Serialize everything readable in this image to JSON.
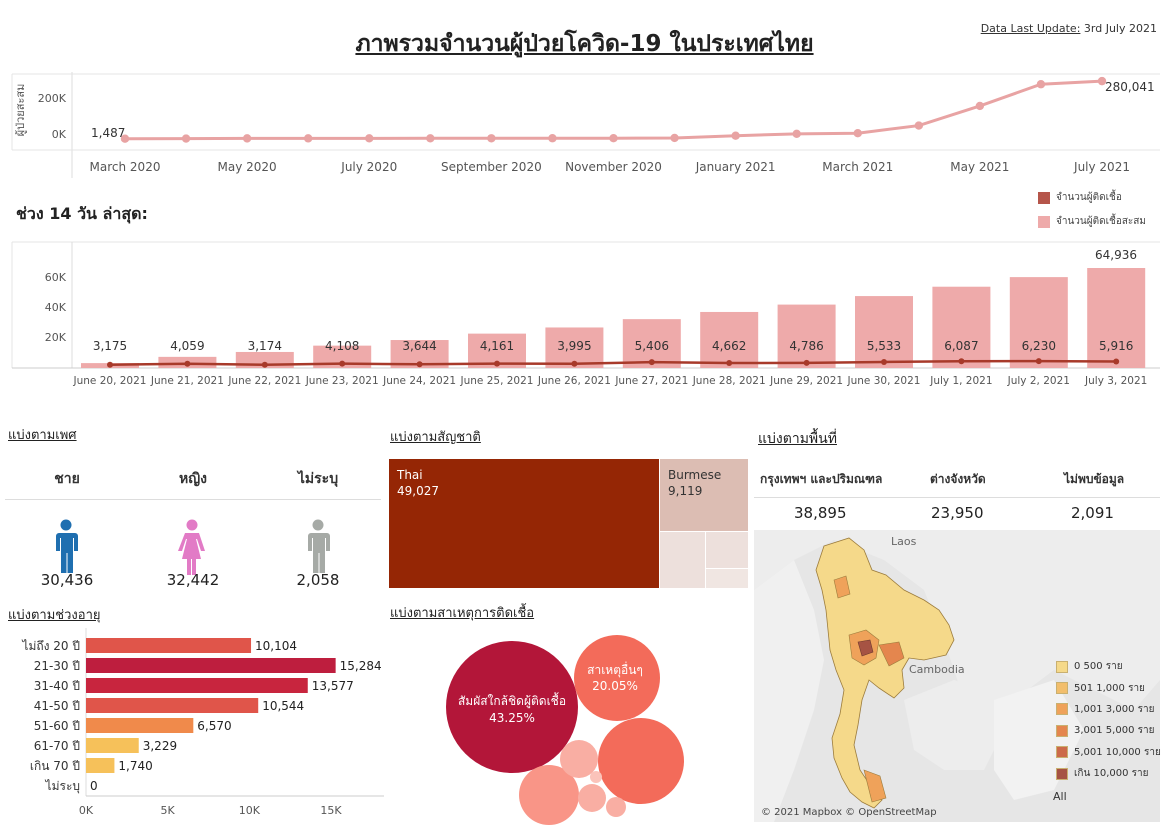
{
  "header": {
    "title": "ภาพรวมจำนวนผู้ป่วยโควิด-19 ในประเทศไทย",
    "update_label": "Data Last Update:",
    "update_value": "3rd July 2021"
  },
  "cumulative_chart": {
    "ylabel": "ผู้ป่วยสะสม",
    "ytick_200k": "200K",
    "ytick_0k": "0K",
    "first_label": "1,487",
    "last_label": "280,041",
    "xticks": [
      "March 2020",
      "May 2020",
      "July 2020",
      "September 2020",
      "November 2020",
      "January 2021",
      "March 2021",
      "May 2021",
      "July 2021"
    ]
  },
  "recent_section": {
    "title": "ช่วง 14 วัน ล่าสุด:",
    "legend_daily": "จำนวนผู้ติดเชื้อ",
    "legend_cumulative": "จำนวนผู้ติดเชื้อสะสม",
    "ytick_60k": "60K",
    "ytick_40k": "40K",
    "ytick_20k": "20K",
    "top_label": "64,936"
  },
  "gender": {
    "title": "แบ่งตามเพศ",
    "male_label": "ชาย",
    "female_label": "หญิง",
    "unknown_label": "ไม่ระบุ",
    "male_value": "30,436",
    "female_value": "32,442",
    "unknown_value": "2,058"
  },
  "age": {
    "title": "แบ่งตามช่วงอายุ",
    "xticks": [
      "0K",
      "5K",
      "10K",
      "15K"
    ]
  },
  "nationality": {
    "title": "แบ่งตามสัญชาติ",
    "thai_label": "Thai",
    "thai_value": "49,027",
    "burmese_label": "Burmese",
    "burmese_value": "9,119"
  },
  "cause": {
    "title": "แบ่งตามสาเหตุการติดเชื้อ",
    "contact_label": "สัมผัสใกล้ชิดผู้ติดเชื้อ",
    "contact_pct": "43.25%",
    "other_label": "สาเหตุอื่นๆ",
    "other_pct": "20.05%"
  },
  "area": {
    "title": "แบ่งตามพื้นที่",
    "bkk_label": "กรุงเทพฯ และปริมณฑล",
    "province_label": "ต่างจังหวัด",
    "unknown_label": "ไม่พบข้อมูล",
    "bkk_value": "38,895",
    "province_value": "23,950",
    "unknown_value": "2,091",
    "map_laos": "Laos",
    "map_cambodia": "Cambodia",
    "map_credit": "© 2021 Mapbox © OpenStreetMap",
    "legend": [
      "0 500 ราย",
      "501 1,000 ราย",
      "1,001 3,000 ราย",
      "3,001 5,000 ราย",
      "5,001 10,000 ราย",
      "เกิน 10,000 ราย"
    ],
    "legend_colors": [
      "#f5d98a",
      "#f2be6c",
      "#efa25a",
      "#e4864e",
      "#cc6a4a",
      "#a65343"
    ],
    "legend_all": "All"
  },
  "chart_data": [
    {
      "type": "line",
      "title": "",
      "ylabel": "ผู้ป่วยสะสม",
      "x": [
        "March 2020",
        "April 2020",
        "May 2020",
        "June 2020",
        "July 2020",
        "August 2020",
        "September 2020",
        "October 2020",
        "November 2020",
        "December 2020",
        "January 2021",
        "February 2021",
        "March 2021",
        "April 2021",
        "May 2021",
        "June 2021",
        "July 2021"
      ],
      "y": [
        1487,
        2000,
        3000,
        3100,
        3300,
        3400,
        3500,
        3700,
        3900,
        5000,
        16000,
        25000,
        28000,
        65000,
        160000,
        265000,
        280041
      ],
      "ylim": [
        0,
        300000
      ],
      "color": "#e8a3a3"
    },
    {
      "type": "bar",
      "categories": [
        "June 20, 2021",
        "June 21, 2021",
        "June 22, 2021",
        "June 23, 2021",
        "June 24, 2021",
        "June 25, 2021",
        "June 26, 2021",
        "June 27, 2021",
        "June 28, 2021",
        "June 29, 2021",
        "June 30, 2021",
        "July 1, 2021",
        "July 2, 2021",
        "July 3, 2021"
      ],
      "series": [
        {
          "name": "จำนวนผู้ติดเชื้อสะสม",
          "type": "bar",
          "values": [
            3175,
            7234,
            10408,
            14516,
            18160,
            22321,
            26316,
            31722,
            36384,
            41170,
            46703,
            52790,
            59020,
            64936
          ],
          "color": "#eeaaaa"
        },
        {
          "name": "จำนวนผู้ติดเชื้อ",
          "type": "line",
          "values": [
            3175,
            4059,
            3174,
            4108,
            3644,
            4161,
            3995,
            5406,
            4662,
            4786,
            5533,
            6087,
            6230,
            5916
          ],
          "color": "#a83a2a"
        }
      ],
      "ylim": [
        0,
        72000
      ]
    },
    {
      "type": "bar",
      "title": "แบ่งตามช่วงอายุ",
      "categories": [
        "ไม่ถึง 20 ปี",
        "21-30 ปี",
        "31-40 ปี",
        "41-50 ปี",
        "51-60 ปี",
        "61-70 ปี",
        "เกิน 70 ปี",
        "ไม่ระบุ"
      ],
      "values": [
        10104,
        15284,
        13577,
        10544,
        6570,
        3229,
        1740,
        0
      ],
      "labels": [
        "10,104",
        "15,284",
        "13,577",
        "10,544",
        "6,570",
        "3,229",
        "1,740",
        "0"
      ],
      "colors": [
        "#e0554a",
        "#be1e3e",
        "#c8253e",
        "#e0554a",
        "#f08a4b",
        "#f6c15a",
        "#f6c15a",
        "#f6c15a"
      ],
      "xlim": [
        0,
        18000
      ]
    },
    {
      "type": "treemap",
      "title": "แบ่งตามสัญชาติ",
      "categories": [
        "Thai",
        "Burmese"
      ],
      "values": [
        49027,
        9119
      ]
    },
    {
      "type": "bubble",
      "title": "แบ่งตามสาเหตุการติดเชื้อ",
      "categories": [
        "สัมผัสใกล้ชิดผู้ติดเชื้อ",
        "สาเหตุอื่นๆ"
      ],
      "values": [
        43.25,
        20.05
      ]
    }
  ]
}
